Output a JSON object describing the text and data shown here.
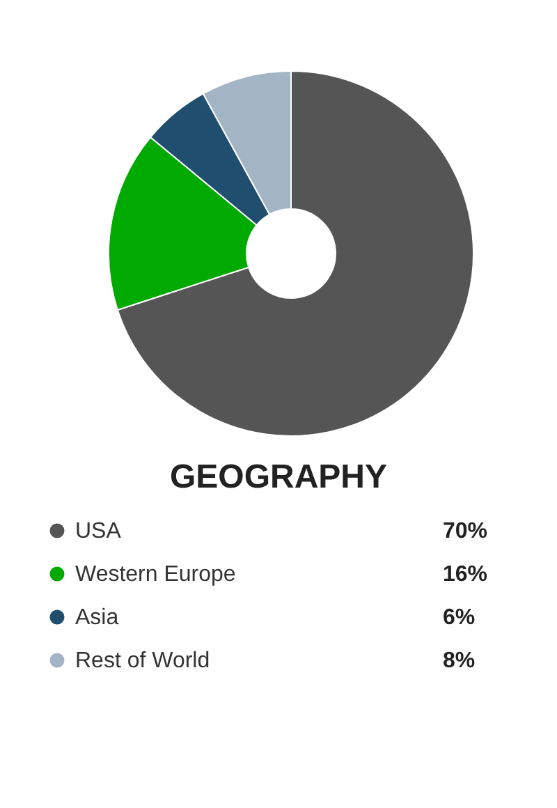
{
  "chart_data": {
    "type": "donut",
    "title": "GEOGRAPHY",
    "categories": [
      "USA",
      "Western Europe",
      "Asia",
      "Rest of World"
    ],
    "values": [
      70,
      16,
      6,
      8
    ],
    "value_labels": [
      "70%",
      "16%",
      "6%",
      "8%"
    ],
    "colors": [
      "#555555",
      "#00aa00",
      "#1f4e6e",
      "#a3b5c4"
    ],
    "legend": "bottom"
  }
}
